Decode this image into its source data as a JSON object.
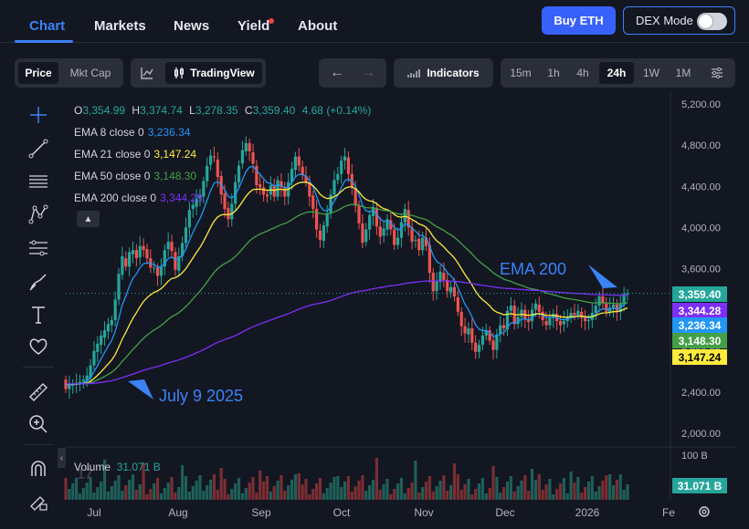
{
  "nav": {
    "items": [
      "Chart",
      "Markets",
      "News",
      "Yield",
      "About"
    ],
    "buy_label": "Buy ETH",
    "dex_label": "DEX Mode"
  },
  "toolbar": {
    "price_label": "Price",
    "mktcap_label": "Mkt Cap",
    "tradingview_label": "TradingView",
    "indicators_label": "Indicators",
    "timeframes": [
      "15m",
      "1h",
      "4h",
      "24h",
      "1W",
      "1M"
    ],
    "active_timeframe": "24h"
  },
  "legend": {
    "ohlc": {
      "o_label": "O",
      "o": "3,354.99",
      "h_label": "H",
      "h": "3,374.74",
      "l_label": "L",
      "l": "3,278.35",
      "c_label": "C",
      "c": "3,359.40",
      "change": "4.68 (+0.14%)"
    },
    "ema8": {
      "label": "EMA 8 close 0",
      "value": "3,236.34"
    },
    "ema21": {
      "label": "EMA 21 close 0",
      "value": "3,147.24"
    },
    "ema50": {
      "label": "EMA 50 close 0",
      "value": "3,148.30"
    },
    "ema200": {
      "label": "EMA 200 close 0",
      "value": "3,344.28"
    }
  },
  "volume": {
    "label": "Volume",
    "value": "31.071 B",
    "axis_max": "100 B"
  },
  "annotations": {
    "ema200_note": "EMA 200",
    "date_note": "July 9 2025"
  },
  "axis_tags": [
    {
      "value": "3,359.40",
      "color": "#26a69a",
      "text_color": "#ffffff"
    },
    {
      "value": "3,344.28",
      "color": "#7b2ff7",
      "text_color": "#ffffff"
    },
    {
      "value": "3,236.34",
      "color": "#2196f3",
      "text_color": "#ffffff"
    },
    {
      "value": "3,148.30",
      "color": "#43a047",
      "text_color": "#ffffff"
    },
    {
      "value": "3,147.24",
      "color": "#ffeb3b",
      "text_color": "#000000"
    }
  ],
  "colors": {
    "up": "#26a69a",
    "down": "#ef5350",
    "ema8": "#2196f3",
    "ema21": "#ffeb3b",
    "ema50": "#43a047",
    "ema200": "#7b2ff7",
    "accent": "#3b82f6"
  },
  "chart_data": {
    "type": "candlestick",
    "title": "",
    "y_axis": {
      "min": 2000,
      "max": 5200,
      "ticks": [
        2000,
        2400,
        2800,
        3200,
        3600,
        4000,
        4400,
        4800,
        5200
      ],
      "tick_labels": [
        "2,000.00",
        "2,400.00",
        "2,800.00",
        "3,200.00",
        "3,600.00",
        "4,000.00",
        "4,400.00",
        "4,800.00",
        "5,200.00"
      ]
    },
    "x_axis": {
      "labels": [
        "Jul",
        "Aug",
        "Sep",
        "Oct",
        "Nov",
        "Dec",
        "2026",
        "Fe"
      ]
    },
    "last_price": 3359.4,
    "series": [
      {
        "name": "EMA 8",
        "last": 3236.34
      },
      {
        "name": "EMA 21",
        "last": 3147.24
      },
      {
        "name": "EMA 50",
        "last": 3148.3
      },
      {
        "name": "EMA 200",
        "last": 3344.28
      }
    ],
    "candles": [
      [
        2520,
        2430
      ],
      [
        2430,
        2480
      ],
      [
        2470,
        2470
      ],
      [
        2470,
        2490
      ],
      [
        2480,
        2500
      ],
      [
        2500,
        2520
      ],
      [
        2510,
        2560
      ],
      [
        2540,
        2660
      ],
      [
        2660,
        2800
      ],
      [
        2790,
        2870
      ],
      [
        2860,
        2950
      ],
      [
        2930,
        3000
      ],
      [
        2990,
        3060
      ],
      [
        3050,
        3100
      ],
      [
        3100,
        3300
      ],
      [
        3300,
        3550
      ],
      [
        3540,
        3720
      ],
      [
        3700,
        3620
      ],
      [
        3620,
        3760
      ],
      [
        3740,
        3780
      ],
      [
        3780,
        3700
      ],
      [
        3710,
        3820
      ],
      [
        3820,
        3780
      ],
      [
        3790,
        3700
      ],
      [
        3700,
        3610
      ],
      [
        3600,
        3610
      ],
      [
        3610,
        3530
      ],
      [
        3530,
        3620
      ],
      [
        3620,
        3780
      ],
      [
        3790,
        3860
      ],
      [
        3860,
        3770
      ],
      [
        3760,
        3590
      ],
      [
        3580,
        3720
      ],
      [
        3720,
        3850
      ],
      [
        3850,
        4000
      ],
      [
        4000,
        4170
      ],
      [
        4180,
        4220
      ],
      [
        4200,
        4280
      ],
      [
        4280,
        4310
      ],
      [
        4300,
        4450
      ],
      [
        4450,
        4600
      ],
      [
        4610,
        4700
      ],
      [
        4690,
        4680
      ],
      [
        4660,
        4490
      ],
      [
        4500,
        4320
      ],
      [
        4330,
        4180
      ],
      [
        4190,
        4080
      ],
      [
        4080,
        4230
      ],
      [
        4230,
        4440
      ],
      [
        4440,
        4600
      ],
      [
        4620,
        4750
      ],
      [
        4740,
        4820
      ],
      [
        4820,
        4740
      ],
      [
        4730,
        4620
      ],
      [
        4600,
        4410
      ],
      [
        4420,
        4390
      ],
      [
        4390,
        4320
      ],
      [
        4320,
        4300
      ],
      [
        4320,
        4410
      ],
      [
        4410,
        4300
      ],
      [
        4300,
        4460
      ],
      [
        4450,
        4390
      ],
      [
        4390,
        4300
      ],
      [
        4300,
        4440
      ],
      [
        4440,
        4570
      ],
      [
        4560,
        4690
      ],
      [
        4690,
        4600
      ],
      [
        4590,
        4510
      ],
      [
        4500,
        4440
      ],
      [
        4430,
        4300
      ],
      [
        4310,
        4180
      ],
      [
        4180,
        3980
      ],
      [
        3970,
        3880
      ],
      [
        3870,
        4020
      ],
      [
        4010,
        4140
      ],
      [
        4140,
        4320
      ],
      [
        4320,
        4460
      ],
      [
        4460,
        4520
      ],
      [
        4520,
        4650
      ],
      [
        4650,
        4690
      ],
      [
        4680,
        4520
      ],
      [
        4520,
        4390
      ],
      [
        4380,
        4210
      ],
      [
        4210,
        4040
      ],
      [
        4040,
        3850
      ],
      [
        3860,
        3980
      ],
      [
        3980,
        4120
      ],
      [
        4110,
        4200
      ],
      [
        4190,
        4010
      ],
      [
        4010,
        3910
      ],
      [
        3920,
        3990
      ],
      [
        3980,
        4080
      ],
      [
        4070,
        3980
      ],
      [
        3980,
        3830
      ],
      [
        3830,
        3900
      ],
      [
        3900,
        4050
      ],
      [
        4050,
        4180
      ],
      [
        4170,
        4000
      ],
      [
        4000,
        3860
      ],
      [
        3870,
        3880
      ],
      [
        3890,
        3780
      ],
      [
        3780,
        3900
      ],
      [
        3900,
        3820
      ],
      [
        3830,
        3560
      ],
      [
        3560,
        3380
      ],
      [
        3380,
        3480
      ],
      [
        3470,
        3570
      ],
      [
        3560,
        3490
      ],
      [
        3490,
        3380
      ],
      [
        3370,
        3420
      ],
      [
        3420,
        3330
      ],
      [
        3320,
        3180
      ],
      [
        3180,
        3040
      ],
      [
        3040,
        2970
      ],
      [
        2960,
        3020
      ],
      [
        3020,
        2880
      ],
      [
        2880,
        2790
      ],
      [
        2790,
        2860
      ],
      [
        2860,
        2950
      ],
      [
        2950,
        3000
      ],
      [
        3000,
        2900
      ],
      [
        2900,
        2810
      ],
      [
        2810,
        2960
      ],
      [
        2960,
        3050
      ],
      [
        3050,
        3020
      ],
      [
        3010,
        3190
      ],
      [
        3190,
        3240
      ],
      [
        3240,
        3060
      ],
      [
        3060,
        3130
      ],
      [
        3130,
        3200
      ],
      [
        3200,
        3110
      ],
      [
        3110,
        3080
      ],
      [
        3090,
        3200
      ],
      [
        3200,
        3260
      ],
      [
        3250,
        3180
      ],
      [
        3180,
        3100
      ],
      [
        3090,
        3050
      ],
      [
        3050,
        3120
      ],
      [
        3120,
        3160
      ],
      [
        3160,
        3090
      ],
      [
        3090,
        3050
      ],
      [
        3060,
        3090
      ],
      [
        3090,
        3130
      ],
      [
        3130,
        3170
      ],
      [
        3170,
        3150
      ],
      [
        3150,
        3190
      ],
      [
        3180,
        3120
      ],
      [
        3120,
        3090
      ],
      [
        3090,
        3100
      ],
      [
        3100,
        3170
      ],
      [
        3170,
        3240
      ],
      [
        3240,
        3330
      ],
      [
        3330,
        3260
      ],
      [
        3260,
        3180
      ],
      [
        3180,
        3220
      ],
      [
        3220,
        3250
      ],
      [
        3250,
        3180
      ],
      [
        3180,
        3260
      ],
      [
        3260,
        3355
      ],
      [
        3355,
        3359
      ]
    ]
  }
}
